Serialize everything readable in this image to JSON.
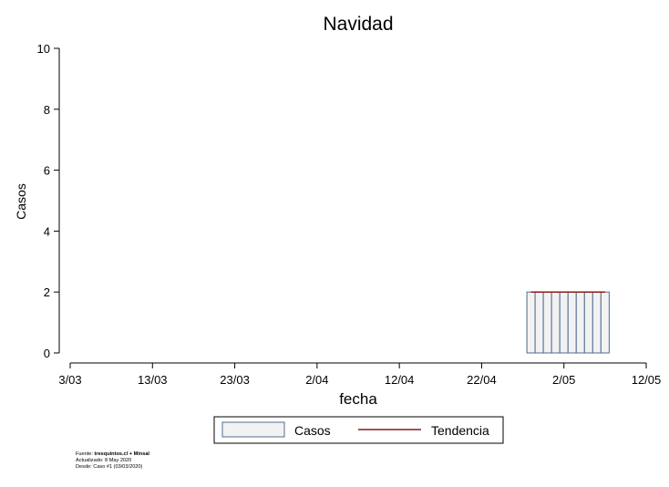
{
  "chart_data": {
    "type": "bar",
    "title": "Navidad",
    "xlabel": "fecha",
    "ylabel": "Casos",
    "ylim": [
      0,
      10
    ],
    "yticks": [
      0,
      2,
      4,
      6,
      8,
      10
    ],
    "xlim": [
      "2020-03-03",
      "2020-05-12"
    ],
    "xticks": [
      {
        "date": "2020-03-03",
        "label": "3/03"
      },
      {
        "date": "2020-03-13",
        "label": "13/03"
      },
      {
        "date": "2020-03-23",
        "label": "23/03"
      },
      {
        "date": "2020-04-02",
        "label": "2/04"
      },
      {
        "date": "2020-04-12",
        "label": "12/04"
      },
      {
        "date": "2020-04-22",
        "label": "22/04"
      },
      {
        "date": "2020-05-02",
        "label": "2/05"
      },
      {
        "date": "2020-05-12",
        "label": "12/05"
      }
    ],
    "series": [
      {
        "name": "Casos",
        "kind": "bar",
        "color": "#f2f2f2",
        "edge_color": "#4e6d91",
        "x": [
          "2020-04-28",
          "2020-04-29",
          "2020-04-30",
          "2020-05-01",
          "2020-05-02",
          "2020-05-03",
          "2020-05-04",
          "2020-05-05",
          "2020-05-06",
          "2020-05-07"
        ],
        "values": [
          2,
          2,
          2,
          2,
          2,
          2,
          2,
          2,
          2,
          2
        ]
      },
      {
        "name": "Tendencia",
        "kind": "line",
        "color": "#8b1a1a",
        "x": [
          "2020-04-28",
          "2020-04-29",
          "2020-04-30",
          "2020-05-01",
          "2020-05-02",
          "2020-05-03",
          "2020-05-04",
          "2020-05-05",
          "2020-05-06",
          "2020-05-07"
        ],
        "values": [
          2,
          2,
          2,
          2,
          2,
          2,
          2,
          2,
          2,
          2
        ]
      }
    ],
    "legend_position": "bottom",
    "grid": false
  },
  "footer": {
    "source_prefix": "Fuente: ",
    "source_bold": "tresquintos.cl + Minsal",
    "updated": "Actualizado: 8 May 2020",
    "since": "Desde: Caso #1  (03/03/2020)"
  }
}
